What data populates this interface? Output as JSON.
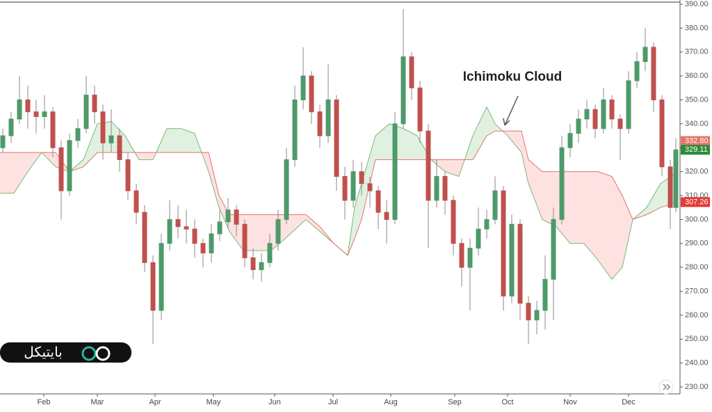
{
  "chart_data": {
    "type": "candlestick",
    "annotation": "Ichimoku Cloud",
    "logo": "بایتیکل",
    "xlim": [
      0,
      244
    ],
    "xticks": [
      {
        "value": 15.75,
        "label": "Feb"
      },
      {
        "value": 35,
        "label": "Mar"
      },
      {
        "value": 55.75,
        "label": "Apr"
      },
      {
        "value": 76.75,
        "label": "May"
      },
      {
        "value": 98.75,
        "label": "Jun"
      },
      {
        "value": 119.75,
        "label": "Jul"
      },
      {
        "value": 140.5,
        "label": "Aug"
      },
      {
        "value": 163.5,
        "label": "Sep"
      },
      {
        "value": 182.5,
        "label": "Oct"
      },
      {
        "value": 205,
        "label": "Nov"
      },
      {
        "value": 226,
        "label": "Dec"
      }
    ],
    "ylim": [
      230,
      390
    ],
    "yticks": [
      {
        "value": 230,
        "label": "230.00"
      },
      {
        "value": 240,
        "label": "240.00"
      },
      {
        "value": 250,
        "label": "250.00"
      },
      {
        "value": 260,
        "label": "260.00"
      },
      {
        "value": 270,
        "label": "270.00"
      },
      {
        "value": 280,
        "label": "280.00"
      },
      {
        "value": 290,
        "label": "290.00"
      },
      {
        "value": 300,
        "label": "300.00"
      },
      {
        "value": 310,
        "label": "310.00"
      },
      {
        "value": 320,
        "label": "320.00"
      },
      {
        "value": 330,
        "label": "330.00"
      },
      {
        "value": 340,
        "label": "340.00"
      },
      {
        "value": 350,
        "label": "350.00"
      },
      {
        "value": 360,
        "label": "360.00"
      },
      {
        "value": 370,
        "label": "370.00"
      },
      {
        "value": 380,
        "label": "380.00"
      },
      {
        "value": 390,
        "label": "390.00"
      }
    ],
    "up_color": "#4e9a6a",
    "down_color": "#c0504d",
    "x": [
      1,
      4,
      7,
      10,
      13,
      16,
      19,
      22,
      25,
      28,
      31,
      34,
      37,
      40,
      43,
      46,
      49,
      52,
      55,
      58,
      61,
      64,
      67,
      70,
      73,
      76,
      79,
      82,
      85,
      88,
      91,
      94,
      97,
      100,
      103,
      106,
      109,
      112,
      115,
      118,
      121,
      124,
      127,
      130,
      133,
      136,
      139,
      142,
      145,
      148,
      151,
      154,
      157,
      160,
      163,
      166,
      169,
      172,
      175,
      178,
      181,
      184,
      187,
      190,
      193,
      196,
      199,
      202,
      205,
      208,
      211,
      214,
      217,
      220,
      223,
      226,
      229,
      232,
      235,
      238,
      241,
      243
    ],
    "open": [
      330,
      335,
      342,
      350,
      345,
      343,
      345,
      330,
      312,
      333,
      338,
      352,
      345,
      332,
      335,
      325,
      312,
      303,
      282,
      262,
      290,
      300,
      297,
      296,
      290,
      286,
      294,
      299,
      304,
      298,
      284,
      279,
      282,
      290,
      300,
      325,
      350,
      360,
      345,
      335,
      350,
      318,
      308,
      320,
      315,
      312,
      303,
      300,
      340,
      368,
      355,
      337,
      308,
      318,
      308,
      290,
      280,
      288,
      296,
      300,
      312,
      268,
      298,
      265,
      258,
      262,
      275,
      300,
      330,
      336,
      342,
      346,
      338,
      350,
      342,
      338,
      358,
      366,
      372,
      350,
      322,
      305
    ],
    "high": [
      338,
      345,
      360,
      356,
      350,
      352,
      347,
      333,
      336,
      342,
      360,
      356,
      348,
      346,
      338,
      328,
      315,
      306,
      285,
      294,
      308,
      306,
      304,
      300,
      292,
      298,
      304,
      309,
      306,
      300,
      288,
      286,
      294,
      304,
      330,
      356,
      372,
      362,
      348,
      365,
      352,
      322,
      325,
      324,
      318,
      314,
      308,
      345,
      388,
      370,
      358,
      340,
      325,
      320,
      310,
      292,
      292,
      305,
      304,
      318,
      314,
      302,
      300,
      268,
      266,
      285,
      305,
      335,
      340,
      346,
      350,
      348,
      355,
      352,
      344,
      362,
      370,
      380,
      374,
      352,
      325,
      334
    ],
    "low": [
      328,
      332,
      340,
      338,
      336,
      338,
      326,
      300,
      310,
      330,
      336,
      340,
      325,
      328,
      320,
      308,
      298,
      278,
      248,
      258,
      287,
      292,
      290,
      284,
      280,
      282,
      291,
      296,
      293,
      280,
      275,
      274,
      280,
      287,
      298,
      322,
      346,
      340,
      330,
      332,
      312,
      300,
      305,
      310,
      305,
      296,
      290,
      298,
      338,
      350,
      332,
      288,
      305,
      302,
      285,
      272,
      262,
      285,
      292,
      298,
      262,
      265,
      258,
      248,
      252,
      254,
      258,
      298,
      326,
      332,
      338,
      334,
      336,
      338,
      325,
      336,
      355,
      362,
      345,
      318,
      296,
      303
    ],
    "close": [
      335,
      342,
      350,
      345,
      343,
      345,
      330,
      312,
      333,
      338,
      352,
      345,
      332,
      335,
      325,
      312,
      303,
      282,
      262,
      290,
      300,
      297,
      296,
      290,
      286,
      294,
      299,
      304,
      298,
      284,
      279,
      282,
      290,
      300,
      325,
      350,
      360,
      345,
      335,
      350,
      318,
      308,
      320,
      315,
      312,
      303,
      300,
      340,
      368,
      355,
      337,
      308,
      318,
      308,
      290,
      280,
      288,
      296,
      300,
      312,
      268,
      298,
      265,
      258,
      262,
      275,
      300,
      330,
      336,
      342,
      346,
      338,
      350,
      342,
      338,
      358,
      366,
      372,
      350,
      322,
      305,
      329.11
    ],
    "cloud_x": [
      0,
      5,
      10,
      15,
      20,
      25,
      30,
      35,
      40,
      45,
      50,
      55,
      60,
      65,
      70,
      75,
      78.75,
      82.5,
      87.5,
      92.5,
      97.5,
      102.5,
      110,
      115,
      120,
      125,
      127.5,
      130,
      135,
      140,
      145,
      150,
      155,
      160,
      165,
      170,
      175,
      178,
      182.5,
      187.5,
      190,
      195,
      200,
      205,
      210,
      215,
      220,
      223.75,
      227.5,
      232.5,
      237.5,
      243.75
    ],
    "span_a": {
      "color": "#79b879",
      "fill": "rgba(120,190,120,0.22)",
      "values": [
        311,
        311,
        320,
        328,
        322,
        320,
        325,
        340,
        341,
        335,
        325,
        325,
        338,
        338,
        336,
        320,
        305,
        295,
        287,
        287,
        287,
        292,
        300,
        295,
        290,
        285,
        305,
        315,
        335,
        340,
        338,
        335,
        325,
        320,
        318,
        335,
        347,
        340,
        335,
        328,
        315,
        300,
        297,
        290,
        290,
        283,
        275,
        280,
        300,
        305,
        315,
        320
      ]
    },
    "span_b": {
      "color": "#e8706a",
      "fill": "rgba(250,150,150,0.28)",
      "values": [
        328,
        328,
        328,
        328,
        328,
        320,
        322,
        328,
        328,
        328,
        328,
        328,
        328,
        328,
        328,
        328,
        310,
        302,
        302,
        302,
        302,
        302,
        302,
        297,
        290,
        285,
        292,
        300,
        325,
        325,
        325,
        325,
        325,
        325,
        325,
        325,
        335,
        337,
        337,
        337,
        325,
        320,
        320,
        320,
        320,
        320,
        318,
        310,
        300,
        302,
        305,
        307.26
      ]
    },
    "price_labels": [
      {
        "value": 332.8,
        "label": "332.80",
        "color": "#e57368"
      },
      {
        "value": 329.11,
        "label": "329.11",
        "color": "#2e8b3a"
      },
      {
        "value": 307.26,
        "label": "307.26",
        "color": "#e53935"
      }
    ]
  }
}
